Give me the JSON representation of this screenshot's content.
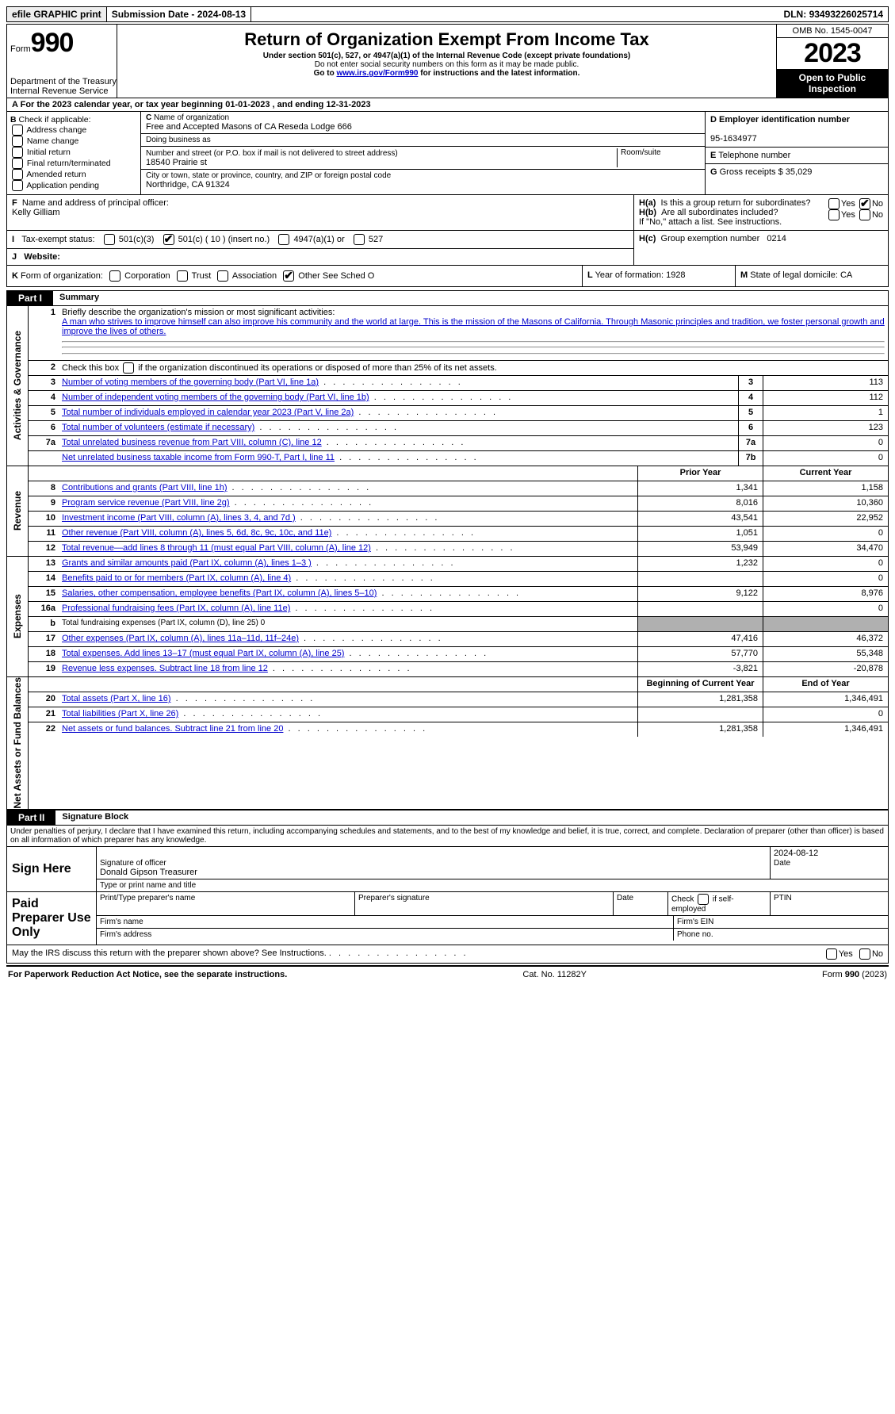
{
  "top": {
    "efile": "efile GRAPHIC print",
    "submission": "Submission Date - 2024-08-13",
    "dln_label": "DLN:",
    "dln": "93493226025714"
  },
  "header": {
    "form_prefix": "Form",
    "form_no": "990",
    "title": "Return of Organization Exempt From Income Tax",
    "sub1": "Under section 501(c), 527, or 4947(a)(1) of the Internal Revenue Code (except private foundations)",
    "sub2": "Do not enter social security numbers on this form as it may be made public.",
    "sub3_pre": "Go to ",
    "sub3_link": "www.irs.gov/Form990",
    "sub3_post": " for instructions and the latest information.",
    "dept1": "Department of the Treasury",
    "dept2": "Internal Revenue Service",
    "omb": "OMB No. 1545-0047",
    "year": "2023",
    "inspection": "Open to Public Inspection"
  },
  "A": {
    "text": "For the 2023 calendar year, or tax year beginning 01-01-2023   , and ending 12-31-2023"
  },
  "B": {
    "label": "Check if applicable:",
    "items": [
      "Address change",
      "Name change",
      "Initial return",
      "Final return/terminated",
      "Amended return",
      "Application pending"
    ]
  },
  "C": {
    "name_label": "Name of organization",
    "name": "Free and Accepted Masons of CA Reseda Lodge 666",
    "dba_label": "Doing business as",
    "street_label": "Number and street (or P.O. box if mail is not delivered to street address)",
    "street": "18540 Prairie st",
    "room_label": "Room/suite",
    "city_label": "City or town, state or province, country, and ZIP or foreign postal code",
    "city": "Northridge, CA  91324"
  },
  "D": {
    "label": "Employer identification number",
    "value": "95-1634977"
  },
  "E": {
    "label": "Telephone number"
  },
  "F": {
    "label": "Name and address of principal officer:",
    "value": "Kelly Gilliam"
  },
  "G": {
    "label": "Gross receipts $",
    "value": "35,029"
  },
  "H": {
    "a": "Is this a group return for subordinates?",
    "b": "Are all subordinates included?",
    "b_note": "If \"No,\" attach a list. See instructions.",
    "c_label": "Group exemption number",
    "c_value": "0214",
    "yes": "Yes",
    "no": "No"
  },
  "I": {
    "label": "Tax-exempt status:",
    "opts": [
      "501(c)(3)",
      "501(c) ( 10 ) (insert no.)",
      "4947(a)(1) or",
      "527"
    ]
  },
  "J": {
    "label": "Website:"
  },
  "K": {
    "label": "Form of organization:",
    "opts": [
      "Corporation",
      "Trust",
      "Association",
      "Other  See Sched O"
    ]
  },
  "L": {
    "label": "Year of formation:",
    "value": "1928"
  },
  "M": {
    "label": "State of legal domicile:",
    "value": "CA"
  },
  "partI": {
    "title": "Part I",
    "heading": "Summary",
    "q1_label": "Briefly describe the organization's mission or most significant activities:",
    "q1_text": "A man who strives to improve himself can also improve his community and the world at large. This is the mission of the Masons of California. Through Masonic principles and tradition, we foster personal growth and improve the lives of others.",
    "q2": "Check this box      if the organization discontinued its operations or disposed of more than 25% of its net assets.",
    "side_ag": "Activities & Governance",
    "side_rev": "Revenue",
    "side_exp": "Expenses",
    "side_net": "Net Assets or Fund Balances",
    "prior": "Prior Year",
    "current": "Current Year",
    "boy": "Beginning of Current Year",
    "eoy": "End of Year",
    "gov_rows": [
      {
        "n": "3",
        "d": "Number of voting members of the governing body (Part VI, line 1a)",
        "box": "3",
        "v": "113"
      },
      {
        "n": "4",
        "d": "Number of independent voting members of the governing body (Part VI, line 1b)",
        "box": "4",
        "v": "112"
      },
      {
        "n": "5",
        "d": "Total number of individuals employed in calendar year 2023 (Part V, line 2a)",
        "box": "5",
        "v": "1"
      },
      {
        "n": "6",
        "d": "Total number of volunteers (estimate if necessary)",
        "box": "6",
        "v": "123"
      },
      {
        "n": "7a",
        "d": "Total unrelated business revenue from Part VIII, column (C), line 12",
        "box": "7a",
        "v": "0"
      },
      {
        "n": "",
        "d": "Net unrelated business taxable income from Form 990-T, Part I, line 11",
        "box": "7b",
        "v": "0"
      }
    ],
    "rev_rows": [
      {
        "n": "8",
        "d": "Contributions and grants (Part VIII, line 1h)",
        "p": "1,341",
        "c": "1,158"
      },
      {
        "n": "9",
        "d": "Program service revenue (Part VIII, line 2g)",
        "p": "8,016",
        "c": "10,360"
      },
      {
        "n": "10",
        "d": "Investment income (Part VIII, column (A), lines 3, 4, and 7d )",
        "p": "43,541",
        "c": "22,952"
      },
      {
        "n": "11",
        "d": "Other revenue (Part VIII, column (A), lines 5, 6d, 8c, 9c, 10c, and 11e)",
        "p": "1,051",
        "c": "0"
      },
      {
        "n": "12",
        "d": "Total revenue—add lines 8 through 11 (must equal Part VIII, column (A), line 12)",
        "p": "53,949",
        "c": "34,470"
      }
    ],
    "exp_rows": [
      {
        "n": "13",
        "d": "Grants and similar amounts paid (Part IX, column (A), lines 1–3 )",
        "p": "1,232",
        "c": "0"
      },
      {
        "n": "14",
        "d": "Benefits paid to or for members (Part IX, column (A), line 4)",
        "p": "",
        "c": "0"
      },
      {
        "n": "15",
        "d": "Salaries, other compensation, employee benefits (Part IX, column (A), lines 5–10)",
        "p": "9,122",
        "c": "8,976"
      },
      {
        "n": "16a",
        "d": "Professional fundraising fees (Part IX, column (A), line 11e)",
        "p": "",
        "c": "0"
      },
      {
        "n": "b",
        "d": "Total fundraising expenses (Part IX, column (D), line 25) 0",
        "grey": true
      },
      {
        "n": "17",
        "d": "Other expenses (Part IX, column (A), lines 11a–11d, 11f–24e)",
        "p": "47,416",
        "c": "46,372"
      },
      {
        "n": "18",
        "d": "Total expenses. Add lines 13–17 (must equal Part IX, column (A), line 25)",
        "p": "57,770",
        "c": "55,348"
      },
      {
        "n": "19",
        "d": "Revenue less expenses. Subtract line 18 from line 12",
        "p": "-3,821",
        "c": "-20,878"
      }
    ],
    "net_rows": [
      {
        "n": "20",
        "d": "Total assets (Part X, line 16)",
        "p": "1,281,358",
        "c": "1,346,491"
      },
      {
        "n": "21",
        "d": "Total liabilities (Part X, line 26)",
        "p": "",
        "c": "0"
      },
      {
        "n": "22",
        "d": "Net assets or fund balances. Subtract line 21 from line 20",
        "p": "1,281,358",
        "c": "1,346,491"
      }
    ]
  },
  "partII": {
    "title": "Part II",
    "heading": "Signature Block",
    "declaration": "Under penalties of perjury, I declare that I have examined this return, including accompanying schedules and statements, and to the best of my knowledge and belief, it is true, correct, and complete. Declaration of preparer (other than officer) is based on all information of which preparer has any knowledge.",
    "sign_here": "Sign Here",
    "sig_officer": "Signature of officer",
    "officer_name": "Donald Gipson  Treasurer",
    "type_name": "Type or print name and title",
    "date_label": "Date",
    "date": "2024-08-12",
    "paid": "Paid Preparer Use Only",
    "prep_name": "Print/Type preparer's name",
    "prep_sig": "Preparer's signature",
    "check_self": "Check        if self-employed",
    "ptin": "PTIN",
    "firm_name": "Firm's name",
    "firm_ein": "Firm's EIN",
    "firm_addr": "Firm's address",
    "phone": "Phone no.",
    "discuss": "May the IRS discuss this return with the preparer shown above? See Instructions."
  },
  "footer": {
    "left": "For Paperwork Reduction Act Notice, see the separate instructions.",
    "mid": "Cat. No. 11282Y",
    "right": "Form 990 (2023)"
  }
}
